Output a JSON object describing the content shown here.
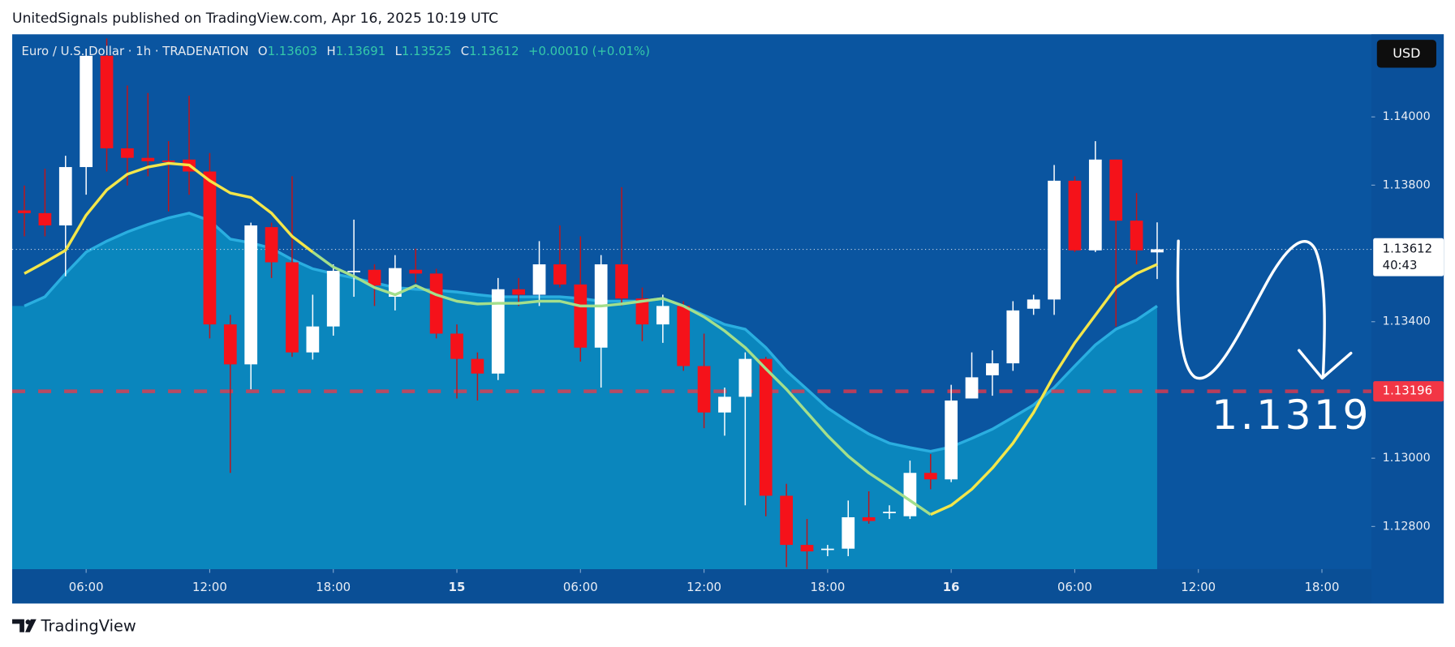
{
  "header": {
    "text": "UnitedSignals published on TradingView.com, Apr 16, 2025 10:19 UTC"
  },
  "footer": {
    "brand": "TradingView"
  },
  "chart_data": {
    "type": "candlestick",
    "symbol": "Euro / U.S. Dollar · 1h · TRADENATION",
    "ohlc_labels": [
      "O",
      "H",
      "L",
      "C"
    ],
    "change": "+0.00010 (+0.01%)",
    "currency": "USD",
    "countdown": "40:43",
    "annotation": "1.1319",
    "up_color": "#ffffff",
    "down_color": "#f5121a",
    "x": [
      3,
      4,
      5,
      6,
      7,
      8,
      9,
      10,
      11,
      12,
      13,
      14,
      15,
      16,
      17,
      18,
      19,
      20,
      21,
      22,
      23,
      24,
      25,
      26,
      27,
      28,
      29,
      30,
      31,
      32,
      33,
      34,
      35,
      36,
      37,
      38,
      39,
      40,
      41,
      42,
      43,
      44,
      45,
      46,
      47,
      48,
      49,
      50,
      51,
      52,
      53,
      54,
      55,
      56,
      57,
      58
    ],
    "open": [
      1.13726,
      1.13718,
      1.13682,
      1.13853,
      1.14179,
      1.13908,
      1.1388,
      1.13872,
      1.13875,
      1.1384,
      1.13392,
      1.13275,
      1.13677,
      1.13574,
      1.1331,
      1.13386,
      1.13546,
      1.13552,
      1.13473,
      1.13552,
      1.13541,
      1.13365,
      1.13291,
      1.13248,
      1.13495,
      1.13479,
      1.13568,
      1.13509,
      1.13324,
      1.13568,
      1.13468,
      1.13392,
      1.13446,
      1.1327,
      1.13134,
      1.1318,
      1.13291,
      1.1289,
      1.12746,
      1.12732,
      1.12735,
      1.12827,
      1.1284,
      1.1283,
      1.12957,
      1.12938,
      1.13175,
      1.13243,
      1.13278,
      1.13438,
      1.13465,
      1.13813,
      1.13609,
      1.13875,
      1.13696,
      1.13603
    ],
    "high": [
      1.13799,
      1.13848,
      1.13886,
      1.142,
      1.1423,
      1.14092,
      1.1407,
      1.13929,
      1.14062,
      1.13894,
      1.1342,
      1.1369,
      1.1369,
      1.13826,
      1.13479,
      1.13568,
      1.13699,
      1.13568,
      1.13595,
      1.13614,
      1.13555,
      1.13392,
      1.1331,
      1.13528,
      1.13528,
      1.13636,
      1.13682,
      1.1365,
      1.13595,
      1.13794,
      1.135,
      1.13479,
      1.1346,
      1.13365,
      1.13207,
      1.1331,
      1.13297,
      1.12925,
      1.12822,
      1.12746,
      1.12876,
      1.12903,
      1.12862,
      1.12993,
      1.13012,
      1.13215,
      1.1331,
      1.13316,
      1.1346,
      1.13479,
      1.13859,
      1.13826,
      1.13929,
      1.13875,
      1.13777,
      1.13691
    ],
    "low": [
      1.1365,
      1.1365,
      1.13533,
      1.13772,
      1.1384,
      1.13799,
      1.13826,
      1.13723,
      1.13772,
      1.13351,
      1.12957,
      1.13202,
      1.13528,
      1.13297,
      1.13289,
      1.13359,
      1.13473,
      1.13446,
      1.13433,
      1.13514,
      1.13351,
      1.13175,
      1.13169,
      1.13229,
      1.13446,
      1.13446,
      1.135,
      1.13283,
      1.13207,
      1.13446,
      1.13343,
      1.13338,
      1.13256,
      1.13088,
      1.13066,
      1.12862,
      1.1283,
      1.12681,
      1.12675,
      1.12713,
      1.12713,
      1.12808,
      1.12822,
      1.12822,
      1.12909,
      1.1293,
      1.13175,
      1.13183,
      1.13256,
      1.1342,
      1.1342,
      1.13604,
      1.13604,
      1.13386,
      1.13568,
      1.13525
    ],
    "close": [
      1.13718,
      1.13682,
      1.13853,
      1.14179,
      1.13908,
      1.1388,
      1.1387,
      1.1387,
      1.1384,
      1.13392,
      1.13275,
      1.13682,
      1.13574,
      1.1331,
      1.13386,
      1.13549,
      1.13549,
      1.13506,
      1.13557,
      1.13541,
      1.13365,
      1.13291,
      1.13248,
      1.13495,
      1.13479,
      1.13568,
      1.13509,
      1.13324,
      1.13568,
      1.13468,
      1.13392,
      1.13446,
      1.1327,
      1.13134,
      1.1318,
      1.13291,
      1.1289,
      1.12746,
      1.12727,
      1.12735,
      1.12827,
      1.12816,
      1.12843,
      1.12957,
      1.12938,
      1.13169,
      1.13237,
      1.13278,
      1.13433,
      1.13465,
      1.13813,
      1.13609,
      1.13875,
      1.13696,
      1.13609,
      1.13612
    ],
    "area": {
      "color": "#0a86bd",
      "line_color": "#2aaee0",
      "values": [
        1.13446,
        1.13473,
        1.13541,
        1.13604,
        1.13636,
        1.13663,
        1.13685,
        1.13704,
        1.13718,
        1.13696,
        1.13642,
        1.13631,
        1.13615,
        1.13582,
        1.13555,
        1.13541,
        1.13528,
        1.13514,
        1.135,
        1.13495,
        1.13492,
        1.13487,
        1.13479,
        1.13473,
        1.13473,
        1.13473,
        1.13473,
        1.13468,
        1.1346,
        1.1346,
        1.1346,
        1.13468,
        1.13446,
        1.13419,
        1.13392,
        1.13378,
        1.13324,
        1.13256,
        1.13202,
        1.13147,
        1.13107,
        1.13071,
        1.13044,
        1.13031,
        1.1302,
        1.13033,
        1.13058,
        1.13085,
        1.1312,
        1.13156,
        1.13207,
        1.1327,
        1.13332,
        1.13378,
        1.13405,
        1.13446
      ]
    },
    "lines": [
      {
        "color": "#f3e64a",
        "values": [
          1.13541,
          1.13574,
          1.13609,
          1.13712,
          1.13786,
          1.13832,
          1.13853,
          1.13864,
          1.13859,
          1.13813,
          1.13777,
          1.13764,
          1.13718,
          1.1365,
          1.13604,
          null,
          null,
          null,
          null,
          null,
          null,
          null,
          null,
          null,
          null,
          null,
          null,
          null,
          null,
          null,
          null,
          null,
          null,
          null,
          null,
          null,
          null,
          null,
          null,
          null,
          null,
          null,
          null,
          null,
          1.12835,
          1.12862,
          1.12909,
          1.12971,
          1.13044,
          1.13134,
          1.13243,
          1.13338,
          1.13419,
          1.135,
          1.13541,
          1.13568
        ]
      },
      {
        "color": "#a3df8c",
        "values": [
          null,
          null,
          null,
          null,
          null,
          null,
          null,
          null,
          null,
          null,
          null,
          null,
          null,
          null,
          1.13604,
          1.1356,
          1.13533,
          1.135,
          1.13479,
          1.13506,
          1.13479,
          1.1346,
          1.13452,
          1.13454,
          1.13454,
          1.1346,
          1.1346,
          1.13446,
          1.13446,
          1.13452,
          1.1346,
          1.13468,
          1.13446,
          1.13414,
          1.13373,
          1.13324,
          1.13262,
          1.13202,
          1.13134,
          1.13066,
          1.13006,
          1.12957,
          1.12917,
          1.12876,
          1.12835,
          null,
          null,
          null,
          null,
          null,
          null,
          null,
          null,
          null,
          null,
          null
        ]
      }
    ],
    "level": {
      "value": 1.13196,
      "label": "1.13196",
      "color": "#f23645"
    },
    "ylim": [
      1.12675,
      1.14242
    ],
    "yticks": [
      {
        "value": 1.128,
        "label": "1.12800"
      },
      {
        "value": 1.13,
        "label": "1.13000"
      },
      {
        "value": 1.134,
        "label": "1.13400"
      },
      {
        "value": 1.138,
        "label": "1.13800"
      },
      {
        "value": 1.14,
        "label": "1.14000"
      }
    ],
    "xlim": [
      2.41,
      68.4
    ],
    "xticks": [
      {
        "value": 6,
        "label": "06:00"
      },
      {
        "value": 12,
        "label": "12:00"
      },
      {
        "value": 18,
        "label": "18:00"
      },
      {
        "value": 24,
        "label": "15"
      },
      {
        "value": 30,
        "label": "06:00"
      },
      {
        "value": 36,
        "label": "12:00"
      },
      {
        "value": 42,
        "label": "18:00"
      },
      {
        "value": 48,
        "label": "16"
      },
      {
        "value": 54,
        "label": "06:00"
      },
      {
        "value": 60,
        "label": "12:00"
      },
      {
        "value": 66,
        "label": "18:00"
      }
    ]
  }
}
